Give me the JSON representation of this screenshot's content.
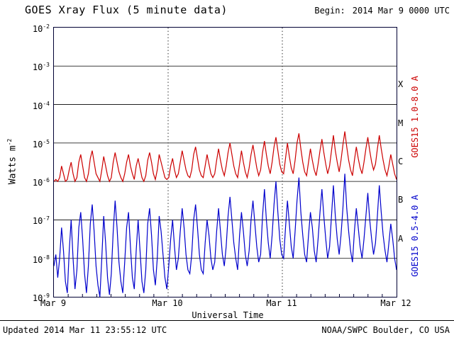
{
  "header": {
    "title": "GOES Xray Flux (5 minute data)",
    "begin_label": "Begin:",
    "begin_value": "2014 Mar 9 0000 UTC"
  },
  "footer": {
    "updated": "Updated 2014 Mar 11 23:55:12 UTC",
    "credit": "NOAA/SWPC Boulder, CO USA"
  },
  "axes": {
    "ylabel_base": "Watts m",
    "ylabel_exp": "-2",
    "xlabel": "Universal Time"
  },
  "colors": {
    "long_channel": "#cc0000",
    "short_channel": "#0000cc",
    "frame": "#000033",
    "grid": "#555555"
  },
  "chart_data": {
    "type": "line",
    "title": "GOES Xray Flux (5 minute data)",
    "xlabel": "Universal Time",
    "ylabel": "Watts m^-2",
    "x_ticks": [
      "Mar 9",
      "Mar 10",
      "Mar 11",
      "Mar 12"
    ],
    "x_range_days": [
      0,
      3
    ],
    "y_scale": "log10",
    "y_exponents": [
      -2,
      -3,
      -4,
      -5,
      -6,
      -7,
      -8,
      -9
    ],
    "grid": "horizontal solid per decade, vertical dotted at day boundaries",
    "legend_position": "right, rotated",
    "flare_classes": [
      {
        "label": "X",
        "log_center": -3.5
      },
      {
        "label": "M",
        "log_center": -4.5
      },
      {
        "label": "C",
        "log_center": -5.5
      },
      {
        "label": "B",
        "log_center": -6.5
      },
      {
        "label": "A",
        "log_center": -7.5
      }
    ],
    "series": [
      {
        "name": "GOES15 1.0-8.0 A",
        "color": "#cc0000",
        "log_flux": [
          -6.0,
          -5.95,
          -6.0,
          -5.9,
          -5.6,
          -5.8,
          -6.0,
          -5.95,
          -5.7,
          -5.5,
          -5.8,
          -6.0,
          -5.9,
          -5.5,
          -5.3,
          -5.6,
          -5.9,
          -6.0,
          -5.8,
          -5.4,
          -5.2,
          -5.5,
          -5.8,
          -5.9,
          -6.0,
          -5.7,
          -5.35,
          -5.6,
          -5.85,
          -6.0,
          -5.9,
          -5.5,
          -5.25,
          -5.5,
          -5.75,
          -5.9,
          -6.0,
          -5.8,
          -5.5,
          -5.3,
          -5.6,
          -5.8,
          -5.95,
          -5.6,
          -5.4,
          -5.65,
          -5.9,
          -6.0,
          -5.85,
          -5.45,
          -5.25,
          -5.5,
          -5.8,
          -5.95,
          -5.7,
          -5.3,
          -5.5,
          -5.7,
          -5.9,
          -5.95,
          -5.9,
          -5.6,
          -5.4,
          -5.7,
          -5.9,
          -5.8,
          -5.5,
          -5.2,
          -5.45,
          -5.7,
          -5.85,
          -5.9,
          -5.7,
          -5.3,
          -5.1,
          -5.4,
          -5.7,
          -5.85,
          -5.9,
          -5.6,
          -5.3,
          -5.55,
          -5.8,
          -5.9,
          -5.8,
          -5.45,
          -5.15,
          -5.45,
          -5.7,
          -5.85,
          -5.6,
          -5.25,
          -5.0,
          -5.3,
          -5.6,
          -5.8,
          -5.9,
          -5.55,
          -5.2,
          -5.5,
          -5.75,
          -5.9,
          -5.65,
          -5.3,
          -5.05,
          -5.35,
          -5.65,
          -5.85,
          -5.7,
          -5.25,
          -4.95,
          -5.3,
          -5.6,
          -5.8,
          -5.5,
          -5.1,
          -4.85,
          -5.2,
          -5.55,
          -5.75,
          -5.8,
          -5.4,
          -5.0,
          -5.35,
          -5.65,
          -5.8,
          -5.45,
          -5.0,
          -4.75,
          -5.15,
          -5.5,
          -5.75,
          -5.85,
          -5.5,
          -5.15,
          -5.45,
          -5.7,
          -5.85,
          -5.55,
          -5.2,
          -4.9,
          -5.25,
          -5.55,
          -5.8,
          -5.6,
          -5.2,
          -4.8,
          -5.2,
          -5.5,
          -5.75,
          -5.45,
          -5.05,
          -4.7,
          -5.1,
          -5.45,
          -5.7,
          -5.85,
          -5.45,
          -5.1,
          -5.4,
          -5.65,
          -5.8,
          -5.5,
          -5.15,
          -4.85,
          -5.2,
          -5.5,
          -5.7,
          -5.55,
          -5.15,
          -4.8,
          -5.15,
          -5.45,
          -5.7,
          -5.85,
          -5.6,
          -5.3,
          -5.55,
          -5.8,
          -5.95
        ]
      },
      {
        "name": "GOES15 0.5-4.0 A",
        "color": "#0000cc",
        "log_flux": [
          -8.2,
          -7.9,
          -8.5,
          -8.0,
          -7.2,
          -7.8,
          -8.6,
          -8.9,
          -7.8,
          -7.0,
          -8.0,
          -8.8,
          -8.3,
          -7.2,
          -6.8,
          -7.5,
          -8.4,
          -8.9,
          -8.2,
          -7.1,
          -6.6,
          -7.3,
          -8.2,
          -8.7,
          -9.0,
          -8.0,
          -6.9,
          -7.6,
          -8.5,
          -8.95,
          -8.4,
          -7.3,
          -6.5,
          -7.2,
          -8.1,
          -8.6,
          -8.9,
          -8.1,
          -7.2,
          -6.8,
          -7.7,
          -8.5,
          -8.8,
          -7.8,
          -7.0,
          -7.8,
          -8.6,
          -8.9,
          -8.3,
          -7.1,
          -6.7,
          -7.4,
          -8.3,
          -8.7,
          -8.0,
          -6.9,
          -7.3,
          -7.9,
          -8.5,
          -8.8,
          -8.2,
          -7.5,
          -7.0,
          -7.7,
          -8.3,
          -8.0,
          -7.3,
          -6.7,
          -7.2,
          -7.9,
          -8.3,
          -8.4,
          -7.9,
          -7.0,
          -6.6,
          -7.2,
          -7.9,
          -8.3,
          -8.4,
          -7.6,
          -7.0,
          -7.4,
          -8.0,
          -8.3,
          -8.1,
          -7.3,
          -6.7,
          -7.3,
          -7.9,
          -8.2,
          -7.7,
          -6.9,
          -6.4,
          -7.0,
          -7.6,
          -8.0,
          -8.3,
          -7.4,
          -6.8,
          -7.3,
          -7.9,
          -8.2,
          -7.8,
          -7.0,
          -6.5,
          -7.1,
          -7.7,
          -8.1,
          -7.9,
          -6.9,
          -6.2,
          -7.0,
          -7.6,
          -8.0,
          -7.4,
          -6.6,
          -6.0,
          -6.8,
          -7.5,
          -7.9,
          -8.0,
          -7.2,
          -6.5,
          -7.1,
          -7.7,
          -8.0,
          -7.3,
          -6.5,
          -5.9,
          -6.8,
          -7.4,
          -7.9,
          -8.1,
          -7.4,
          -6.8,
          -7.2,
          -7.8,
          -8.1,
          -7.5,
          -6.8,
          -6.2,
          -6.9,
          -7.5,
          -8.0,
          -7.7,
          -6.9,
          -6.1,
          -6.9,
          -7.5,
          -7.9,
          -7.4,
          -6.7,
          -5.8,
          -6.7,
          -7.3,
          -7.8,
          -8.1,
          -7.3,
          -6.7,
          -7.2,
          -7.7,
          -8.0,
          -7.5,
          -6.9,
          -6.3,
          -7.0,
          -7.5,
          -7.9,
          -7.6,
          -6.9,
          -6.1,
          -6.8,
          -7.4,
          -7.8,
          -8.1,
          -7.6,
          -7.1,
          -7.5,
          -8.0,
          -8.3
        ]
      }
    ]
  }
}
